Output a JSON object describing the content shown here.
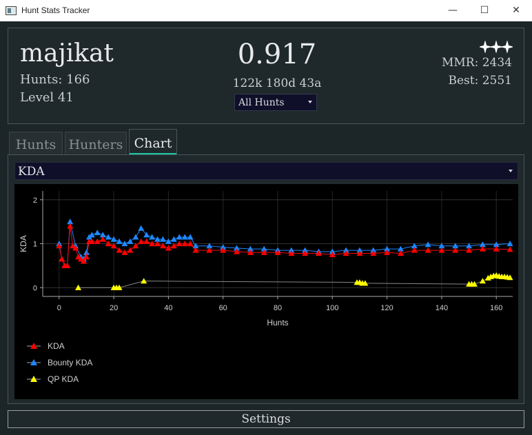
{
  "window": {
    "title": "Hunt Stats Tracker",
    "minimize": "—",
    "maximize": "☐",
    "close": "✕"
  },
  "header": {
    "player_name": "majikat",
    "hunts": "Hunts: 166",
    "level": "Level 41",
    "kda": "0.917",
    "kda_breakdown": "122k 180d 43a",
    "filter_selected": "All Hunts",
    "mmr": "MMR: 2434",
    "best": "Best: 2551",
    "rank_icon": "three-stars-icon"
  },
  "tabs": [
    {
      "label": "Hunts"
    },
    {
      "label": "Hunters"
    },
    {
      "label": "Chart"
    }
  ],
  "chart_panel": {
    "metric_selected": "KDA"
  },
  "settings_label": "Settings",
  "chart_data": {
    "type": "line",
    "xlabel": "Hunts",
    "ylabel": "KDA",
    "xlim": [
      -6,
      166
    ],
    "ylim": [
      -0.2,
      2.2
    ],
    "xticks": [
      0,
      20,
      40,
      60,
      80,
      100,
      120,
      140,
      160
    ],
    "yticks": [
      0,
      1,
      2
    ],
    "grid": true,
    "legend_placement": "bottom-left",
    "series": [
      {
        "name": "KDA",
        "color": "#ff0000",
        "marker": "triangle",
        "points": [
          [
            0,
            0.95
          ],
          [
            1,
            0.65
          ],
          [
            2,
            0.5
          ],
          [
            3,
            0.5
          ],
          [
            4,
            1.4
          ],
          [
            5,
            0.95
          ],
          [
            6,
            0.9
          ],
          [
            7,
            0.7
          ],
          [
            8,
            0.65
          ],
          [
            9,
            0.6
          ],
          [
            10,
            0.7
          ],
          [
            11,
            1.05
          ],
          [
            12,
            1.05
          ],
          [
            14,
            1.05
          ],
          [
            16,
            1.1
          ],
          [
            18,
            1.0
          ],
          [
            20,
            0.95
          ],
          [
            22,
            0.85
          ],
          [
            24,
            0.8
          ],
          [
            26,
            0.85
          ],
          [
            28,
            0.95
          ],
          [
            30,
            1.05
          ],
          [
            32,
            1.05
          ],
          [
            34,
            1.0
          ],
          [
            36,
            1.0
          ],
          [
            38,
            0.95
          ],
          [
            40,
            0.9
          ],
          [
            42,
            0.95
          ],
          [
            44,
            1.0
          ],
          [
            46,
            1.0
          ],
          [
            48,
            1.0
          ],
          [
            50,
            0.85
          ],
          [
            55,
            0.85
          ],
          [
            60,
            0.85
          ],
          [
            65,
            0.82
          ],
          [
            70,
            0.8
          ],
          [
            75,
            0.8
          ],
          [
            80,
            0.8
          ],
          [
            85,
            0.78
          ],
          [
            90,
            0.78
          ],
          [
            95,
            0.78
          ],
          [
            100,
            0.75
          ],
          [
            105,
            0.78
          ],
          [
            110,
            0.78
          ],
          [
            115,
            0.78
          ],
          [
            120,
            0.8
          ],
          [
            125,
            0.78
          ],
          [
            130,
            0.85
          ],
          [
            135,
            0.85
          ],
          [
            140,
            0.85
          ],
          [
            145,
            0.85
          ],
          [
            150,
            0.85
          ],
          [
            155,
            0.88
          ],
          [
            160,
            0.88
          ],
          [
            165,
            0.87
          ]
        ]
      },
      {
        "name": "Bounty KDA",
        "color": "#1e88ff",
        "marker": "triangle",
        "points": [
          [
            0,
            1.0
          ],
          [
            1,
            0.65
          ],
          [
            2,
            0.5
          ],
          [
            3,
            0.5
          ],
          [
            4,
            1.5
          ],
          [
            6,
            0.95
          ],
          [
            8,
            0.7
          ],
          [
            9,
            0.65
          ],
          [
            10,
            0.8
          ],
          [
            11,
            1.15
          ],
          [
            12,
            1.2
          ],
          [
            14,
            1.25
          ],
          [
            16,
            1.2
          ],
          [
            18,
            1.15
          ],
          [
            20,
            1.1
          ],
          [
            22,
            1.05
          ],
          [
            24,
            1.0
          ],
          [
            26,
            1.05
          ],
          [
            28,
            1.15
          ],
          [
            30,
            1.35
          ],
          [
            32,
            1.2
          ],
          [
            34,
            1.15
          ],
          [
            36,
            1.1
          ],
          [
            38,
            1.1
          ],
          [
            40,
            1.05
          ],
          [
            42,
            1.1
          ],
          [
            44,
            1.15
          ],
          [
            46,
            1.15
          ],
          [
            48,
            1.15
          ],
          [
            50,
            0.95
          ],
          [
            55,
            0.95
          ],
          [
            60,
            0.92
          ],
          [
            65,
            0.9
          ],
          [
            70,
            0.88
          ],
          [
            75,
            0.88
          ],
          [
            80,
            0.85
          ],
          [
            85,
            0.85
          ],
          [
            90,
            0.85
          ],
          [
            95,
            0.82
          ],
          [
            100,
            0.82
          ],
          [
            105,
            0.85
          ],
          [
            110,
            0.85
          ],
          [
            115,
            0.85
          ],
          [
            120,
            0.88
          ],
          [
            125,
            0.88
          ],
          [
            130,
            0.95
          ],
          [
            135,
            0.98
          ],
          [
            140,
            0.95
          ],
          [
            145,
            0.95
          ],
          [
            150,
            0.95
          ],
          [
            155,
            0.98
          ],
          [
            160,
            0.98
          ],
          [
            165,
            1.0
          ]
        ]
      },
      {
        "name": "QP KDA",
        "color": "#ffff00",
        "marker": "triangle",
        "points": [
          [
            7,
            0.0
          ],
          [
            20,
            0.0
          ],
          [
            21,
            0.0
          ],
          [
            22,
            0.0
          ],
          [
            31,
            0.15
          ],
          [
            109,
            0.12
          ],
          [
            110,
            0.12
          ],
          [
            111,
            0.1
          ],
          [
            112,
            0.1
          ],
          [
            150,
            0.08
          ],
          [
            151,
            0.08
          ],
          [
            152,
            0.08
          ],
          [
            155,
            0.15
          ],
          [
            157,
            0.22
          ],
          [
            158,
            0.25
          ],
          [
            159,
            0.27
          ],
          [
            160,
            0.28
          ],
          [
            161,
            0.26
          ],
          [
            162,
            0.25
          ],
          [
            163,
            0.25
          ],
          [
            164,
            0.24
          ],
          [
            165,
            0.23
          ]
        ]
      }
    ]
  }
}
